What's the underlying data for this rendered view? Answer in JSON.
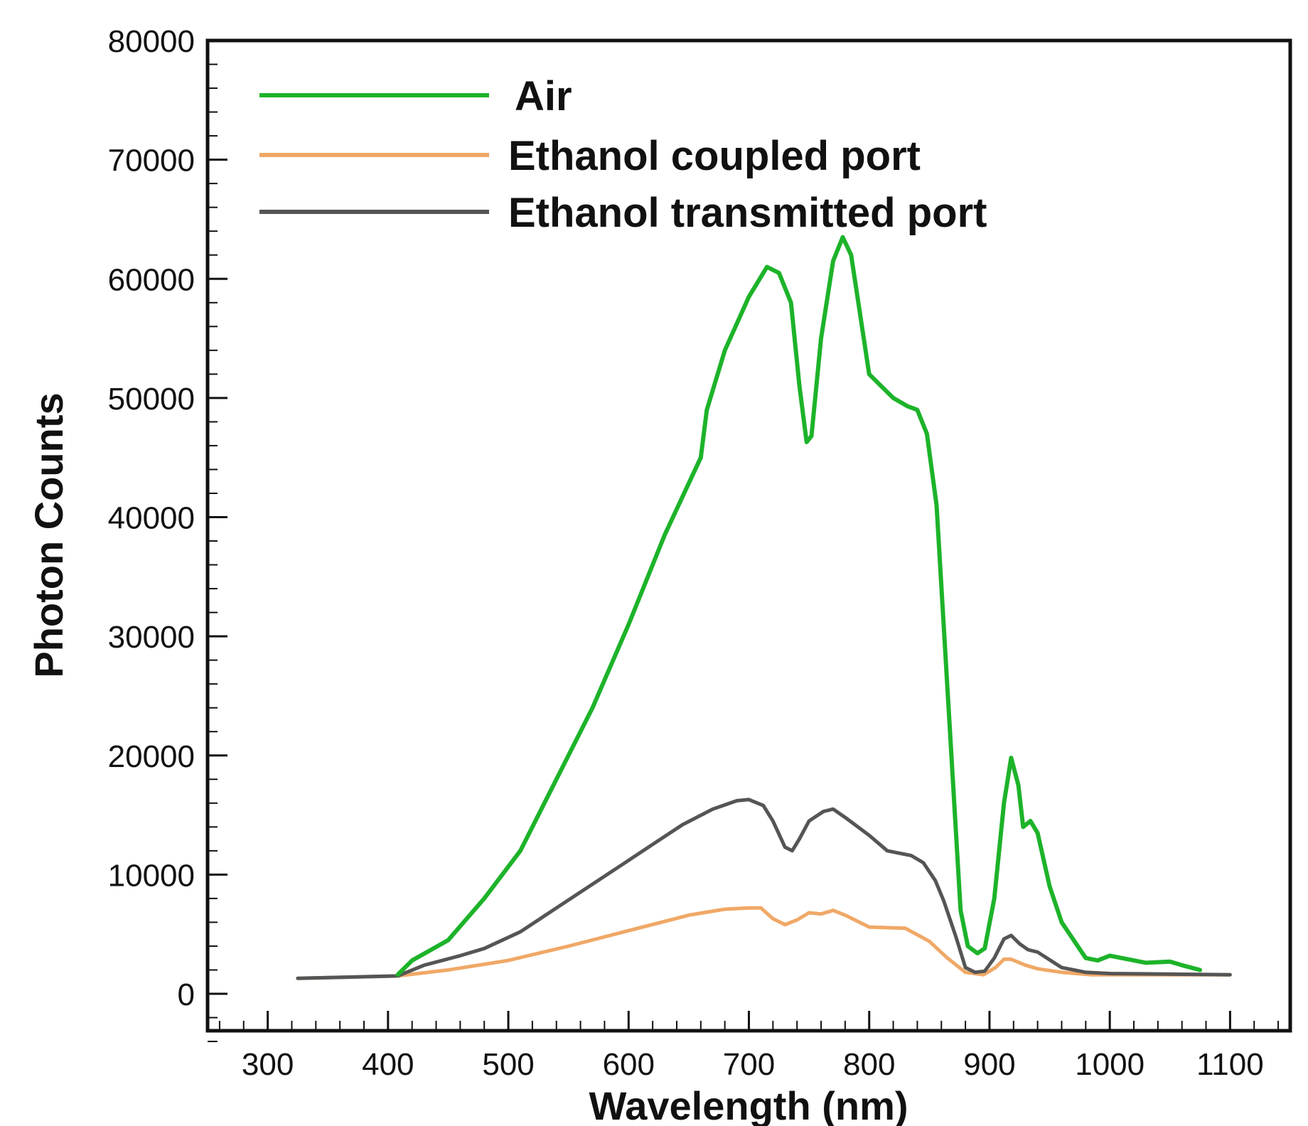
{
  "chart_data": {
    "type": "line",
    "title": "",
    "xlabel": "Wavelength (nm)",
    "ylabel": "Photon Counts",
    "xlim": [
      250,
      1150
    ],
    "ylim": [
      -5000,
      80000
    ],
    "x_ticks": [
      300,
      400,
      500,
      600,
      700,
      800,
      900,
      1000,
      1100
    ],
    "y_ticks": [
      0,
      10000,
      20000,
      30000,
      40000,
      50000,
      60000,
      70000,
      80000
    ],
    "grid": false,
    "legend_position": "top-left",
    "series": [
      {
        "name": "Air",
        "color": "#1db32a",
        "points": [
          [
            408,
            1600
          ],
          [
            420,
            2800
          ],
          [
            450,
            4500
          ],
          [
            480,
            8000
          ],
          [
            510,
            12000
          ],
          [
            540,
            18000
          ],
          [
            570,
            24000
          ],
          [
            600,
            31000
          ],
          [
            630,
            38500
          ],
          [
            660,
            45000
          ],
          [
            665,
            49000
          ],
          [
            680,
            54000
          ],
          [
            700,
            58500
          ],
          [
            715,
            61000
          ],
          [
            725,
            60500
          ],
          [
            735,
            58000
          ],
          [
            742,
            51000
          ],
          [
            748,
            46300
          ],
          [
            752,
            46800
          ],
          [
            760,
            55000
          ],
          [
            770,
            61500
          ],
          [
            778,
            63500
          ],
          [
            785,
            62000
          ],
          [
            800,
            52000
          ],
          [
            810,
            51000
          ],
          [
            820,
            50000
          ],
          [
            832,
            49300
          ],
          [
            840,
            49000
          ],
          [
            848,
            47000
          ],
          [
            856,
            41000
          ],
          [
            866,
            24000
          ],
          [
            876,
            7000
          ],
          [
            882,
            4000
          ],
          [
            890,
            3400
          ],
          [
            896,
            3800
          ],
          [
            904,
            8000
          ],
          [
            912,
            16000
          ],
          [
            918,
            19800
          ],
          [
            924,
            17500
          ],
          [
            928,
            14000
          ],
          [
            934,
            14500
          ],
          [
            940,
            13500
          ],
          [
            950,
            9000
          ],
          [
            960,
            6000
          ],
          [
            980,
            3000
          ],
          [
            990,
            2800
          ],
          [
            1000,
            3200
          ],
          [
            1020,
            2800
          ],
          [
            1030,
            2600
          ],
          [
            1050,
            2700
          ],
          [
            1060,
            2400
          ],
          [
            1075,
            2000
          ]
        ]
      },
      {
        "name": "Ethanol coupled port",
        "color": "#f0a866",
        "points": [
          [
            325,
            1300
          ],
          [
            408,
            1500
          ],
          [
            450,
            2000
          ],
          [
            500,
            2800
          ],
          [
            550,
            4000
          ],
          [
            600,
            5300
          ],
          [
            650,
            6600
          ],
          [
            680,
            7100
          ],
          [
            700,
            7200
          ],
          [
            710,
            7200
          ],
          [
            720,
            6300
          ],
          [
            730,
            5800
          ],
          [
            740,
            6200
          ],
          [
            750,
            6800
          ],
          [
            760,
            6700
          ],
          [
            770,
            7000
          ],
          [
            780,
            6600
          ],
          [
            800,
            5600
          ],
          [
            830,
            5500
          ],
          [
            850,
            4400
          ],
          [
            865,
            3000
          ],
          [
            880,
            1800
          ],
          [
            895,
            1600
          ],
          [
            905,
            2200
          ],
          [
            912,
            2900
          ],
          [
            918,
            2900
          ],
          [
            930,
            2400
          ],
          [
            940,
            2100
          ],
          [
            960,
            1800
          ],
          [
            985,
            1600
          ],
          [
            1000,
            1600
          ],
          [
            1100,
            1600
          ]
        ]
      },
      {
        "name": "Ethanol transmitted port",
        "color": "#555555",
        "points": [
          [
            325,
            1300
          ],
          [
            408,
            1500
          ],
          [
            430,
            2400
          ],
          [
            460,
            3200
          ],
          [
            480,
            3800
          ],
          [
            510,
            5200
          ],
          [
            540,
            7200
          ],
          [
            570,
            9200
          ],
          [
            600,
            11200
          ],
          [
            630,
            13200
          ],
          [
            645,
            14200
          ],
          [
            670,
            15500
          ],
          [
            690,
            16200
          ],
          [
            700,
            16300
          ],
          [
            712,
            15800
          ],
          [
            720,
            14500
          ],
          [
            730,
            12300
          ],
          [
            736,
            12000
          ],
          [
            742,
            13000
          ],
          [
            750,
            14500
          ],
          [
            762,
            15300
          ],
          [
            770,
            15500
          ],
          [
            780,
            14800
          ],
          [
            800,
            13300
          ],
          [
            815,
            12000
          ],
          [
            835,
            11600
          ],
          [
            845,
            11000
          ],
          [
            855,
            9500
          ],
          [
            862,
            7800
          ],
          [
            872,
            4800
          ],
          [
            880,
            2200
          ],
          [
            888,
            1800
          ],
          [
            896,
            1900
          ],
          [
            904,
            3000
          ],
          [
            912,
            4600
          ],
          [
            918,
            4900
          ],
          [
            925,
            4200
          ],
          [
            932,
            3700
          ],
          [
            940,
            3500
          ],
          [
            960,
            2200
          ],
          [
            980,
            1800
          ],
          [
            1000,
            1700
          ],
          [
            1100,
            1600
          ]
        ]
      }
    ]
  }
}
